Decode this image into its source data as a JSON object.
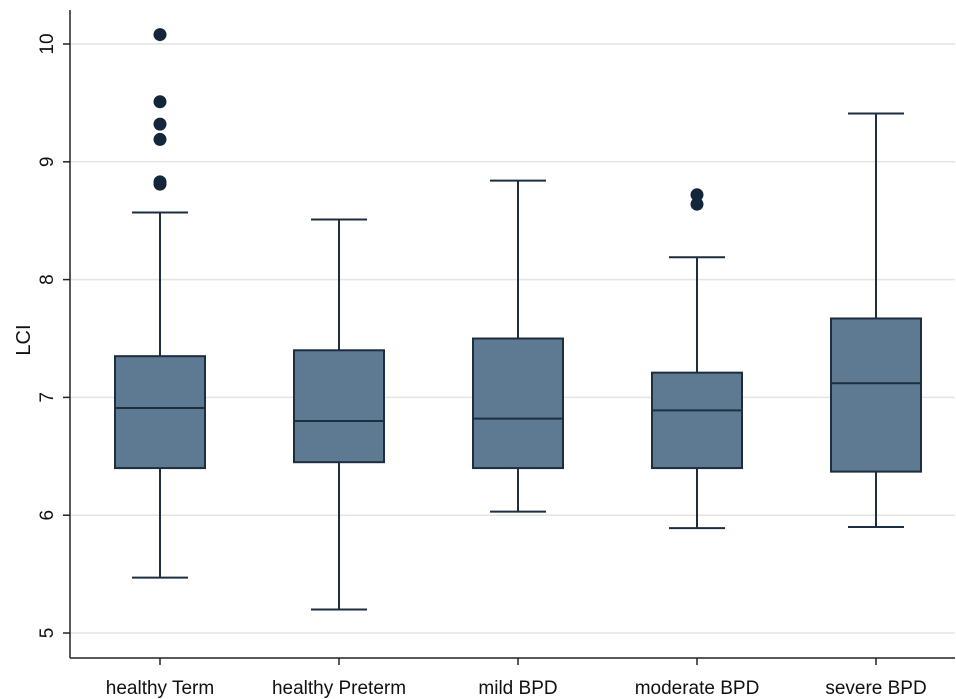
{
  "chart_data": {
    "type": "boxplot",
    "title": "",
    "xlabel": "",
    "ylabel": "LCI",
    "ylim": [
      4.9,
      10.3
    ],
    "yticks": [
      "5",
      "6",
      "7",
      "8",
      "9",
      "10"
    ],
    "grid": true,
    "colors": {
      "box_fill": "#5e7a93",
      "stroke": "#1c2e40",
      "grid": "#e4e4e4",
      "outlier": "#14263a"
    },
    "categories": [
      "healthy Term",
      "healthy Preterm",
      "mild BPD",
      "moderate BPD",
      "severe BPD"
    ],
    "boxes": [
      {
        "whisker_low": 5.47,
        "q1": 6.4,
        "median": 6.91,
        "q3": 7.35,
        "whisker_high": 8.57,
        "outliers": [
          10.08,
          9.51,
          9.32,
          9.19,
          8.83,
          8.81
        ]
      },
      {
        "whisker_low": 5.2,
        "q1": 6.45,
        "median": 6.8,
        "q3": 7.4,
        "whisker_high": 8.51,
        "outliers": []
      },
      {
        "whisker_low": 6.03,
        "q1": 6.4,
        "median": 6.82,
        "q3": 7.5,
        "whisker_high": 8.84,
        "outliers": []
      },
      {
        "whisker_low": 5.89,
        "q1": 6.4,
        "median": 6.89,
        "q3": 7.21,
        "whisker_high": 8.19,
        "outliers": [
          8.72,
          8.64
        ]
      },
      {
        "whisker_low": 5.9,
        "q1": 6.37,
        "median": 7.12,
        "q3": 7.67,
        "whisker_high": 9.41,
        "outliers": []
      }
    ]
  }
}
